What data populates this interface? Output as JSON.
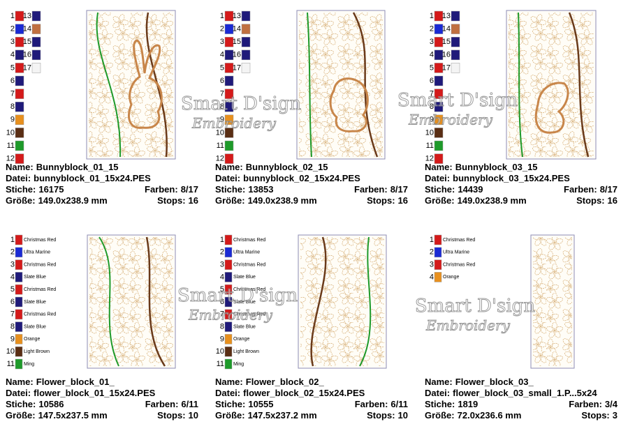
{
  "labels": {
    "name": "Name:",
    "file": "Datei:",
    "stitches": "Stiche:",
    "colors": "Farben:",
    "size": "Größe:",
    "stops": "Stops:"
  },
  "watermark": {
    "line1": "Smart D'sign",
    "line2": "Embroidery"
  },
  "cards": [
    {
      "swatches": [
        {
          "number": 1,
          "color": "#d41a1a"
        },
        {
          "number": 2,
          "color": "#1a2ad4"
        },
        {
          "number": 3,
          "color": "#d41a1a"
        },
        {
          "number": 4,
          "color": "#1f1a7a"
        },
        {
          "number": 5,
          "color": "#d41a1a"
        },
        {
          "number": 6,
          "color": "#1f1a7a"
        },
        {
          "number": 7,
          "color": "#d41a1a"
        },
        {
          "number": 8,
          "color": "#1f1a7a"
        },
        {
          "number": 9,
          "color": "#e8901e"
        },
        {
          "number": 10,
          "color": "#5a2e14"
        },
        {
          "number": 11,
          "color": "#1e9a2a"
        },
        {
          "number": 12,
          "color": "#d41a1a"
        },
        {
          "number": 13,
          "color": "#1f1a7a"
        },
        {
          "number": 14,
          "color": "#c07040"
        },
        {
          "number": 15,
          "color": "#1f1a7a"
        },
        {
          "number": 16,
          "color": "#1f1a7a"
        },
        {
          "number": 17,
          "color": "#f4f4f4"
        }
      ],
      "design": {
        "name": "Bunnyblock_01_15",
        "file": "bunnyblock_01_15x24.PES",
        "stitches": 16175,
        "colors": "8/17",
        "size": "149.0x238.9 mm",
        "stops": 16
      }
    },
    {
      "swatches": [
        {
          "number": 1,
          "color": "#d41a1a"
        },
        {
          "number": 2,
          "color": "#1a2ad4"
        },
        {
          "number": 3,
          "color": "#d41a1a"
        },
        {
          "number": 4,
          "color": "#1f1a7a"
        },
        {
          "number": 5,
          "color": "#d41a1a"
        },
        {
          "number": 6,
          "color": "#1f1a7a"
        },
        {
          "number": 7,
          "color": "#d41a1a"
        },
        {
          "number": 8,
          "color": "#1f1a7a"
        },
        {
          "number": 9,
          "color": "#e8901e"
        },
        {
          "number": 10,
          "color": "#5a2e14"
        },
        {
          "number": 11,
          "color": "#1e9a2a"
        },
        {
          "number": 12,
          "color": "#d41a1a"
        },
        {
          "number": 13,
          "color": "#1f1a7a"
        },
        {
          "number": 14,
          "color": "#c07040"
        },
        {
          "number": 15,
          "color": "#1f1a7a"
        },
        {
          "number": 16,
          "color": "#1f1a7a"
        },
        {
          "number": 17,
          "color": "#f4f4f4"
        }
      ],
      "design": {
        "name": "Bunnyblock_02_15",
        "file": "bunnyblock_02_15x24.PES",
        "stitches": 13853,
        "colors": "8/17",
        "size": "149.0x238.9 mm",
        "stops": 16
      }
    },
    {
      "swatches": [
        {
          "number": 1,
          "color": "#d41a1a"
        },
        {
          "number": 2,
          "color": "#1a2ad4"
        },
        {
          "number": 3,
          "color": "#d41a1a"
        },
        {
          "number": 4,
          "color": "#1f1a7a"
        },
        {
          "number": 5,
          "color": "#d41a1a"
        },
        {
          "number": 6,
          "color": "#1f1a7a"
        },
        {
          "number": 7,
          "color": "#d41a1a"
        },
        {
          "number": 8,
          "color": "#1f1a7a"
        },
        {
          "number": 9,
          "color": "#e8901e"
        },
        {
          "number": 10,
          "color": "#5a2e14"
        },
        {
          "number": 11,
          "color": "#1e9a2a"
        },
        {
          "number": 12,
          "color": "#d41a1a"
        },
        {
          "number": 13,
          "color": "#1f1a7a"
        },
        {
          "number": 14,
          "color": "#c07040"
        },
        {
          "number": 15,
          "color": "#1f1a7a"
        },
        {
          "number": 16,
          "color": "#1f1a7a"
        },
        {
          "number": 17,
          "color": "#f4f4f4"
        }
      ],
      "design": {
        "name": "Bunnyblock_03_15",
        "file": "bunnyblock_03_15x24.PES",
        "stitches": 14439,
        "colors": "8/17",
        "size": "149.0x238.9 mm",
        "stops": 16
      }
    },
    {
      "swatches": [
        {
          "number": 1,
          "color": "#d41a1a",
          "name": "Christmas Red"
        },
        {
          "number": 2,
          "color": "#1a2ad4",
          "name": "Ultra Marine"
        },
        {
          "number": 3,
          "color": "#d41a1a",
          "name": "Christmas Red"
        },
        {
          "number": 4,
          "color": "#1f1a7a",
          "name": "Slate Blue"
        },
        {
          "number": 5,
          "color": "#d41a1a",
          "name": "Christmas Red"
        },
        {
          "number": 6,
          "color": "#1f1a7a",
          "name": "Slate Blue"
        },
        {
          "number": 7,
          "color": "#d41a1a",
          "name": "Christmas Red"
        },
        {
          "number": 8,
          "color": "#1f1a7a",
          "name": "Slate Blue"
        },
        {
          "number": 9,
          "color": "#e8901e",
          "name": "Orange"
        },
        {
          "number": 10,
          "color": "#5a2e14",
          "name": "Light Brown"
        },
        {
          "number": 11,
          "color": "#1e9a2a",
          "name": "Ming"
        }
      ],
      "design": {
        "name": "Flower_block_01_",
        "file": "flower_block_01_15x24.PES",
        "stitches": 10586,
        "colors": "6/11",
        "size": "147.5x237.5 mm",
        "stops": 10
      }
    },
    {
      "swatches": [
        {
          "number": 1,
          "color": "#d41a1a",
          "name": "Christmas Red"
        },
        {
          "number": 2,
          "color": "#1a2ad4",
          "name": "Ultra Marine"
        },
        {
          "number": 3,
          "color": "#d41a1a",
          "name": "Christmas Red"
        },
        {
          "number": 4,
          "color": "#1f1a7a",
          "name": "Slate Blue"
        },
        {
          "number": 5,
          "color": "#d41a1a",
          "name": "Christmas Red"
        },
        {
          "number": 6,
          "color": "#1f1a7a",
          "name": "Slate Blue"
        },
        {
          "number": 7,
          "color": "#d41a1a",
          "name": "Christmas Red"
        },
        {
          "number": 8,
          "color": "#1f1a7a",
          "name": "Slate Blue"
        },
        {
          "number": 9,
          "color": "#e8901e",
          "name": "Orange"
        },
        {
          "number": 10,
          "color": "#5a2e14",
          "name": "Light Brown"
        },
        {
          "number": 11,
          "color": "#1e9a2a",
          "name": "Ming"
        }
      ],
      "design": {
        "name": "Flower_block_02_",
        "file": "flower_block_02_15x24.PES",
        "stitches": 10555,
        "colors": "6/11",
        "size": "147.5x237.2 mm",
        "stops": 10
      }
    },
    {
      "swatches": [
        {
          "number": 1,
          "color": "#d41a1a",
          "name": "Christmas Red"
        },
        {
          "number": 2,
          "color": "#1a2ad4",
          "name": "Ultra Marine"
        },
        {
          "number": 3,
          "color": "#d41a1a",
          "name": "Christmas Red"
        },
        {
          "number": 4,
          "color": "#e8901e",
          "name": "Orange"
        }
      ],
      "design": {
        "name": "Flower_block_03_",
        "file": "flower_block_03_small_1.P...5x24",
        "stitches": 1819,
        "colors": "3/4",
        "size": "72.0x236.6 mm",
        "stops": 3
      }
    }
  ]
}
